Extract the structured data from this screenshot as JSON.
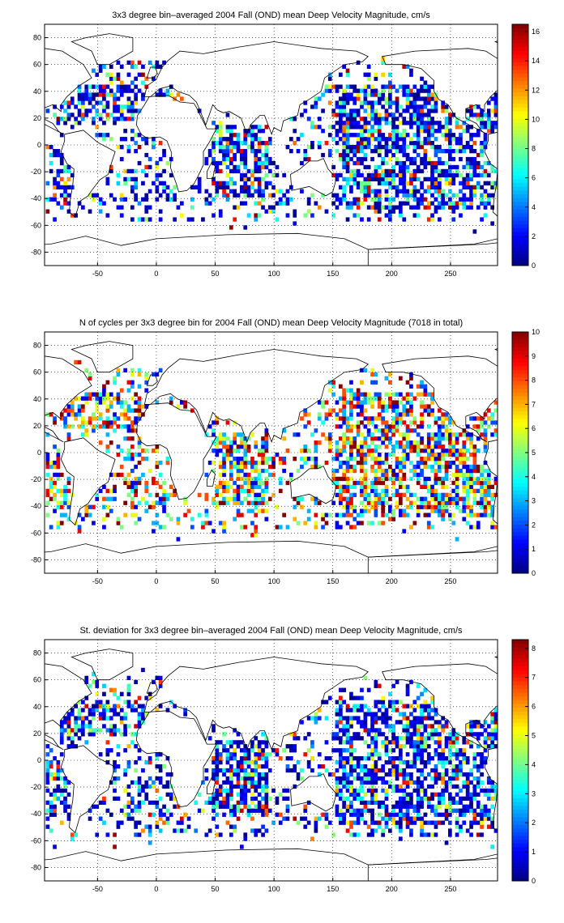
{
  "chart_data": [
    {
      "type": "heatmap",
      "title": "3x3 degree bin–averaged 2004 Fall (OND) mean Deep Velocity Magnitude, cm/s",
      "xlabel": "",
      "ylabel": "",
      "xlim": [
        -95,
        290
      ],
      "ylim": [
        -90,
        90
      ],
      "xticks": [
        -50,
        0,
        50,
        100,
        150,
        200,
        250
      ],
      "yticks": [
        -80,
        -60,
        -40,
        -20,
        0,
        20,
        40,
        60,
        80
      ],
      "grid": true,
      "colormap": "jet",
      "colorbar": {
        "range": [
          0,
          16.5
        ],
        "ticks": [
          0,
          2,
          4,
          6,
          8,
          10,
          12,
          14,
          16
        ]
      },
      "style": "sparse",
      "seed": 11
    },
    {
      "type": "heatmap",
      "title": "N of cycles per 3x3 degree bin for 2004 Fall (OND) mean Deep Velocity Magnitude (7018 in total)",
      "xlabel": "",
      "ylabel": "",
      "xlim": [
        -95,
        290
      ],
      "ylim": [
        -90,
        90
      ],
      "xticks": [
        -50,
        0,
        50,
        100,
        150,
        200,
        250
      ],
      "yticks": [
        -80,
        -60,
        -40,
        -20,
        0,
        20,
        40,
        60,
        80
      ],
      "grid": true,
      "colormap": "jet",
      "colorbar": {
        "range": [
          0,
          10
        ],
        "ticks": [
          0,
          1,
          2,
          3,
          4,
          5,
          6,
          7,
          8,
          9,
          10
        ]
      },
      "style": "counts",
      "seed": 29
    },
    {
      "type": "heatmap",
      "title": "St. deviation for 3x3 degree bin–averaged 2004 Fall (OND) mean Deep Velocity Magnitude, cm/s",
      "xlabel": "",
      "ylabel": "",
      "xlim": [
        -95,
        290
      ],
      "ylim": [
        -90,
        90
      ],
      "xticks": [
        -50,
        0,
        50,
        100,
        150,
        200,
        250
      ],
      "yticks": [
        -80,
        -60,
        -40,
        -20,
        0,
        20,
        40,
        60,
        80
      ],
      "grid": true,
      "colormap": "jet",
      "colorbar": {
        "range": [
          0,
          8.3
        ],
        "ticks": [
          0,
          1,
          2,
          3,
          4,
          5,
          6,
          7,
          8
        ]
      },
      "style": "sparse",
      "seed": 47
    }
  ]
}
